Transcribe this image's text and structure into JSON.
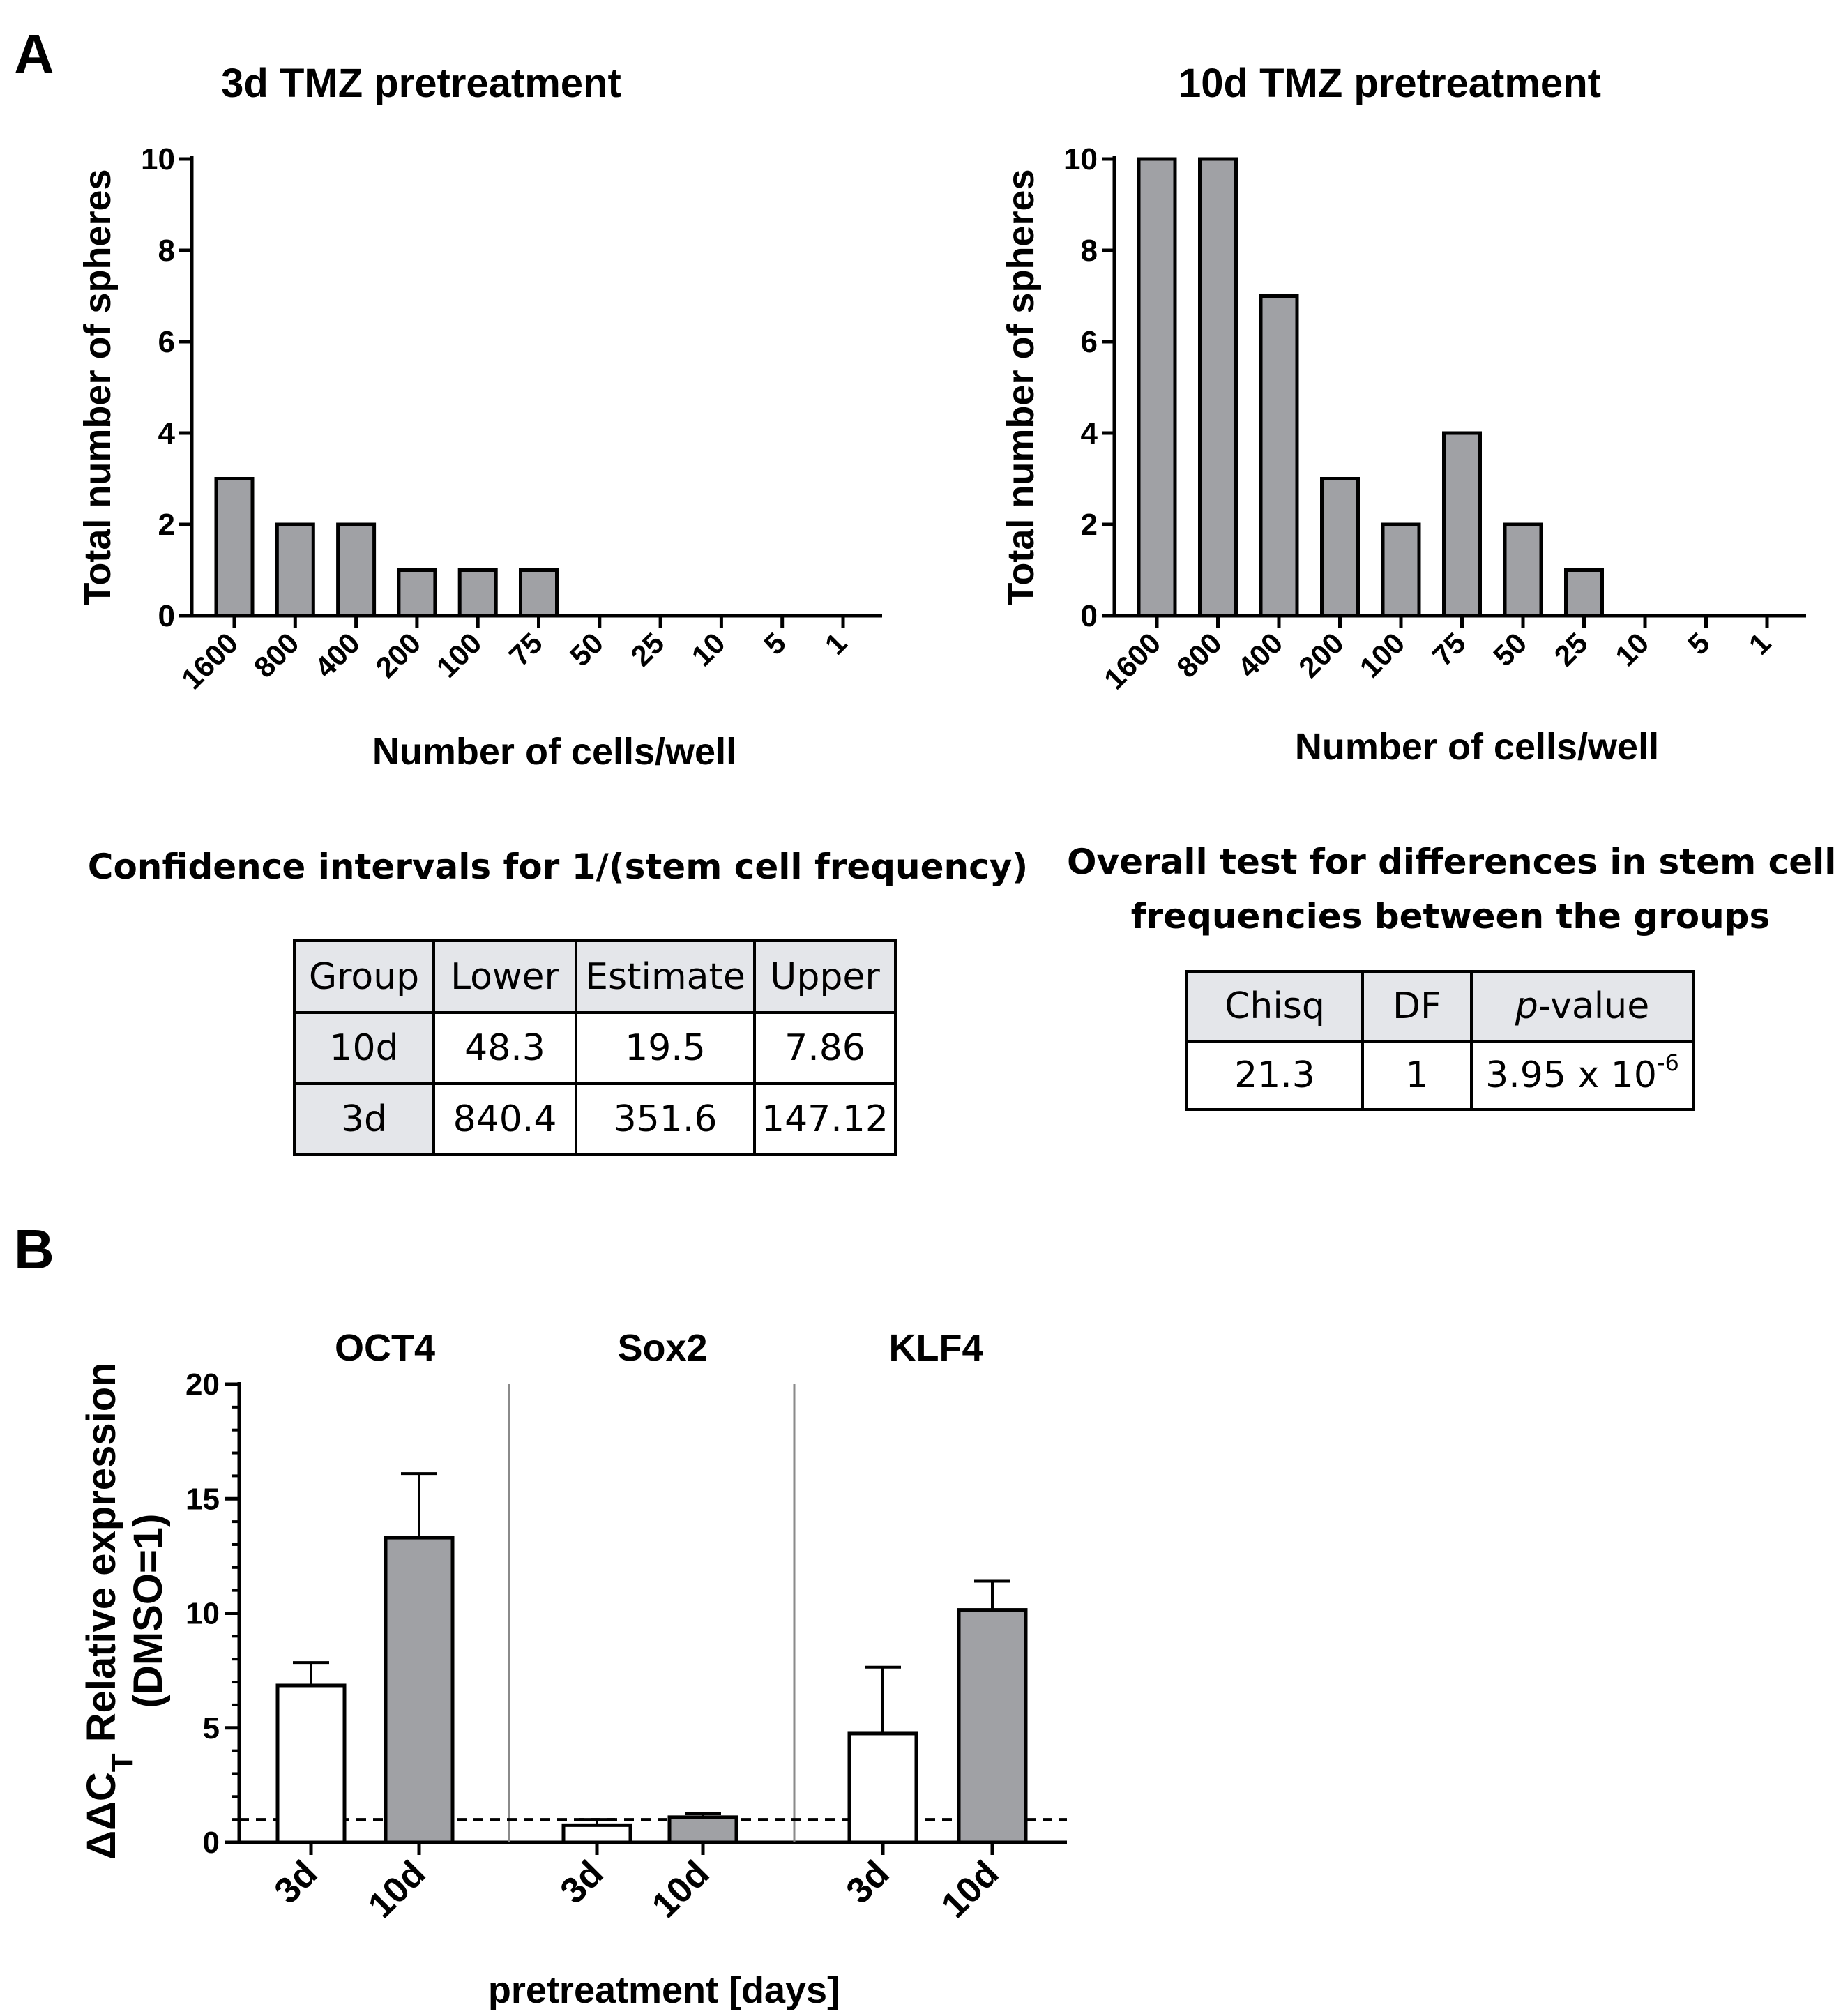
{
  "panels": {
    "a": "A",
    "b": "B"
  },
  "chart_data": [
    {
      "type": "bar",
      "title": "3d TMZ pretreatment",
      "xlabel": "Number of cells/well",
      "ylabel": "Total number of spheres",
      "categories": [
        "1600",
        "800",
        "400",
        "200",
        "100",
        "75",
        "50",
        "25",
        "10",
        "5",
        "1"
      ],
      "values": [
        3,
        2,
        2,
        1,
        1,
        1,
        0,
        0,
        0,
        0,
        0
      ],
      "ylim": [
        0,
        10
      ],
      "yticks": [
        "0",
        "2",
        "4",
        "6",
        "8",
        "10"
      ],
      "bar_color": "#a0a1a5",
      "grid": false
    },
    {
      "type": "bar",
      "title": "10d TMZ pretreatment",
      "xlabel": "Number of cells/well",
      "ylabel": "Total number of spheres",
      "categories": [
        "1600",
        "800",
        "400",
        "200",
        "100",
        "75",
        "50",
        "25",
        "10",
        "5",
        "1"
      ],
      "values": [
        10,
        10,
        7,
        3,
        2,
        4,
        2,
        1,
        0,
        0,
        0
      ],
      "ylim": [
        0,
        10
      ],
      "yticks": [
        "0",
        "2",
        "4",
        "6",
        "8",
        "10"
      ],
      "bar_color": "#a0a1a5",
      "grid": false
    },
    {
      "type": "bar",
      "xlabel": "pretreatment [days]",
      "ylabel_line1": "ΔΔC",
      "ylabel_sub": "T",
      "ylabel_line1_rest": " Relative expression",
      "ylabel_line2": "(DMSO=1)",
      "ylim": [
        0,
        20
      ],
      "yticks": [
        "0",
        "5",
        "10",
        "15",
        "20"
      ],
      "reference_line": 1,
      "grid": false,
      "groups": [
        {
          "gene": "OCT4",
          "bars": [
            {
              "label": "3d",
              "value": 6.85,
              "error": 1.0,
              "fill": "#ffffff"
            },
            {
              "label": "10d",
              "value": 13.3,
              "error": 2.8,
              "fill": "#a0a1a5"
            }
          ]
        },
        {
          "gene": "Sox2",
          "bars": [
            {
              "label": "3d",
              "value": 0.75,
              "error": 0.25,
              "fill": "#ffffff"
            },
            {
              "label": "10d",
              "value": 1.1,
              "error": 0.15,
              "fill": "#a0a1a5"
            }
          ]
        },
        {
          "gene": "KLF4",
          "bars": [
            {
              "label": "3d",
              "value": 4.75,
              "error": 2.9,
              "fill": "#ffffff"
            },
            {
              "label": "10d",
              "value": 10.15,
              "error": 1.25,
              "fill": "#a0a1a5"
            }
          ]
        }
      ]
    }
  ],
  "ci_table": {
    "title": "Confidence intervals for 1/(stem cell frequency)",
    "headers": [
      "Group",
      "Lower",
      "Estimate",
      "Upper"
    ],
    "rows": [
      [
        "10d",
        "48.3",
        "19.5",
        "7.86"
      ],
      [
        "3d",
        "840.4",
        "351.6",
        "147.12"
      ]
    ]
  },
  "test_table": {
    "title_line1": "Overall test for differences in stem cell",
    "title_line2": "frequencies between the groups",
    "headers": [
      "Chisq",
      "DF",
      "p-value"
    ],
    "header_p": "p",
    "header_rest": "-value",
    "row": {
      "chisq": "21.3",
      "df": "1",
      "p_base": "3.95 x 10",
      "p_exp": "-6"
    }
  }
}
